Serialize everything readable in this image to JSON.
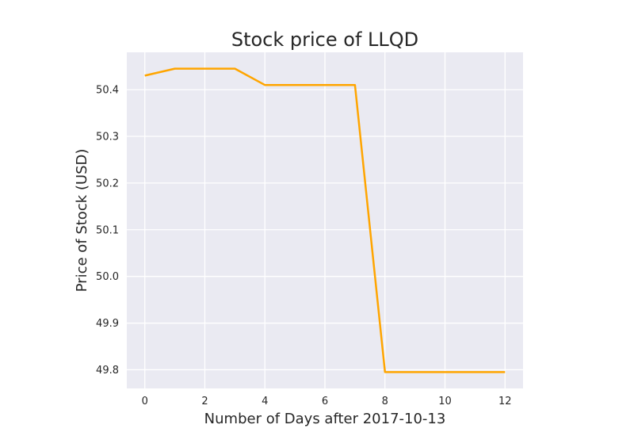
{
  "chart_data": {
    "type": "line",
    "title": "Stock price of LLQD",
    "xlabel": "Number of Days after 2017-10-13",
    "ylabel": "Price of Stock (USD)",
    "xlim": [
      -0.6,
      12.6
    ],
    "ylim": [
      49.76,
      50.48
    ],
    "xticks": [
      0,
      2,
      4,
      6,
      8,
      10,
      12
    ],
    "yticks": [
      49.8,
      49.9,
      50.0,
      50.1,
      50.2,
      50.3,
      50.4
    ],
    "xtick_labels": [
      "0",
      "2",
      "4",
      "6",
      "8",
      "10",
      "12"
    ],
    "ytick_labels": [
      "49.8",
      "49.9",
      "50.0",
      "50.1",
      "50.2",
      "50.3",
      "50.4"
    ],
    "grid": true,
    "series": [
      {
        "color": "#FFA500",
        "x": [
          0,
          1,
          2,
          3,
          4,
          5,
          6,
          7,
          8,
          9,
          10,
          11,
          12
        ],
        "y": [
          50.43,
          50.445,
          50.445,
          50.445,
          50.41,
          50.41,
          50.41,
          50.41,
          49.795,
          49.795,
          49.795,
          49.795,
          49.795
        ]
      }
    ]
  },
  "colors": {
    "plot_background": "#EAEAF2",
    "grid": "#FFFFFF",
    "text": "#262626"
  }
}
